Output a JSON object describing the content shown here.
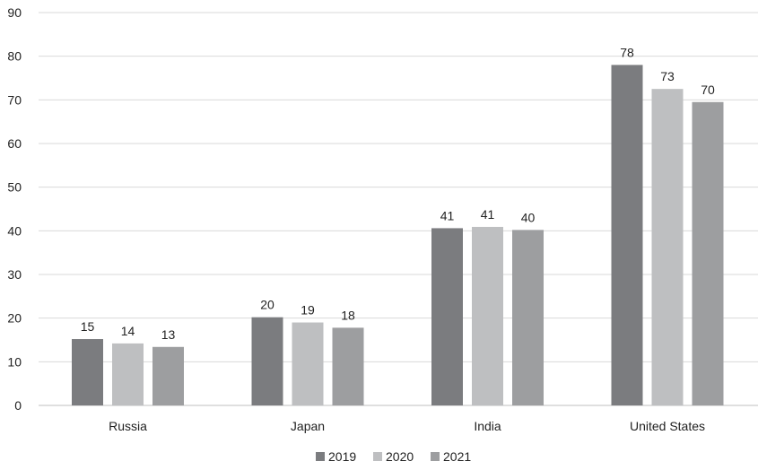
{
  "chart_data": {
    "type": "bar",
    "title": "",
    "xlabel": "",
    "ylabel": "",
    "ylim": [
      0,
      90
    ],
    "yticks": [
      0,
      10,
      20,
      30,
      40,
      50,
      60,
      70,
      80,
      90
    ],
    "grid": true,
    "legend_position": "bottom",
    "categories": [
      "Russia",
      "Japan",
      "India",
      "United States"
    ],
    "series": [
      {
        "name": "2019",
        "color": "#7b7c7f",
        "values": [
          15.2,
          20.2,
          40.6,
          78.0
        ],
        "labels": [
          "15",
          "20",
          "41",
          "78"
        ]
      },
      {
        "name": "2020",
        "color": "#bebfc1",
        "values": [
          14.2,
          19.0,
          40.9,
          72.5
        ],
        "labels": [
          "14",
          "19",
          "41",
          "73"
        ]
      },
      {
        "name": "2021",
        "color": "#9d9ea0",
        "values": [
          13.4,
          17.8,
          40.2,
          69.5
        ],
        "labels": [
          "13",
          "18",
          "40",
          "70"
        ]
      }
    ]
  }
}
